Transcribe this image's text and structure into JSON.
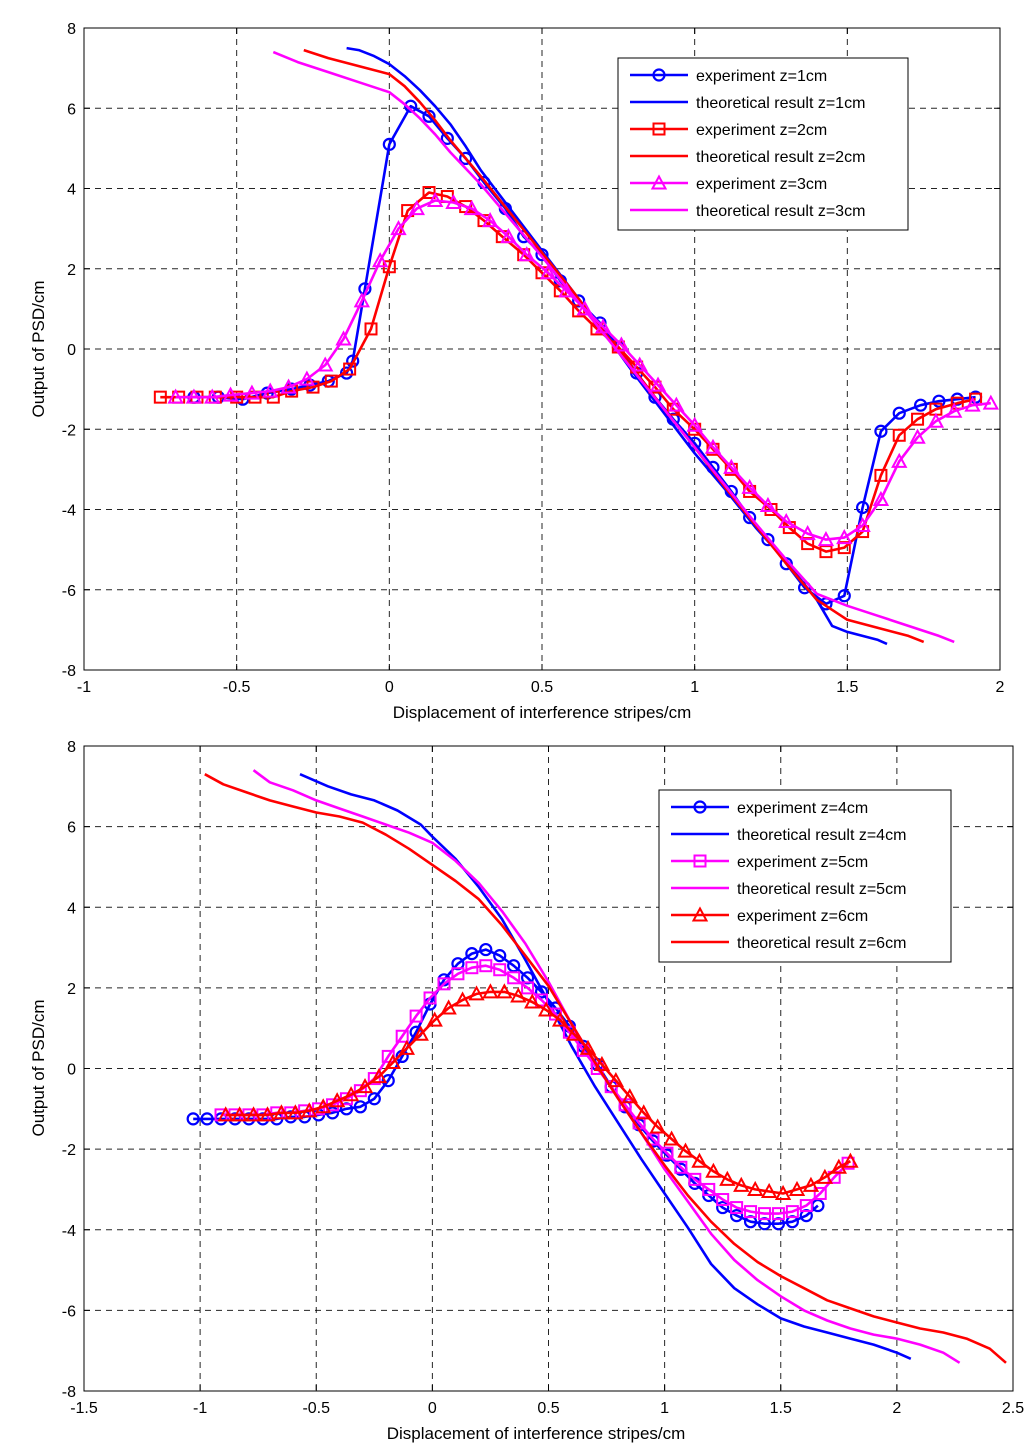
{
  "chart_data": [
    {
      "type": "line",
      "xlabel": "Displacement of interference stripes/cm",
      "ylabel": "Output of PSD/cm",
      "xlim": [
        -1,
        2
      ],
      "ylim": [
        -8,
        8
      ],
      "xticks": [
        -1,
        -0.5,
        0,
        0.5,
        1,
        1.5,
        2
      ],
      "xtick_labels": [
        "-1",
        "-0.5",
        "0",
        "0.5",
        "1",
        "1.5",
        "2"
      ],
      "yticks": [
        -8,
        -6,
        -4,
        -2,
        0,
        2,
        4,
        6,
        8
      ],
      "ytick_labels": [
        "-8",
        "-6",
        "-4",
        "-2",
        "0",
        "2",
        "4",
        "6",
        "8"
      ],
      "grid": true,
      "legend_position": "top-right",
      "series": [
        {
          "name": "experiment z=1cm",
          "color": "#0000ff",
          "marker": "circle",
          "x": [
            -0.64,
            -0.56,
            -0.48,
            -0.4,
            -0.32,
            -0.26,
            -0.2,
            -0.14,
            -0.12,
            -0.08,
            0.0,
            0.07,
            0.13,
            0.19,
            0.25,
            0.31,
            0.38,
            0.44,
            0.5,
            0.56,
            0.62,
            0.69,
            0.75,
            0.81,
            0.87,
            0.93,
            1.0,
            1.06,
            1.12,
            1.18,
            1.24,
            1.3,
            1.36,
            1.43,
            1.49,
            1.55,
            1.61,
            1.67,
            1.74,
            1.8,
            1.86,
            1.92
          ],
          "y": [
            -1.2,
            -1.2,
            -1.25,
            -1.1,
            -1.0,
            -0.9,
            -0.8,
            -0.6,
            -0.3,
            1.5,
            5.1,
            6.05,
            5.8,
            5.25,
            4.75,
            4.15,
            3.5,
            2.8,
            2.35,
            1.7,
            1.2,
            0.65,
            0.05,
            -0.6,
            -1.2,
            -1.75,
            -2.35,
            -2.95,
            -3.55,
            -4.2,
            -4.75,
            -5.35,
            -5.95,
            -6.35,
            -6.15,
            -3.95,
            -2.05,
            -1.6,
            -1.4,
            -1.3,
            -1.25,
            -1.2
          ]
        },
        {
          "name": "theoretical result z=1cm",
          "color": "#0000ff",
          "marker": "none",
          "x": [
            -0.14,
            -0.1,
            -0.05,
            0.0,
            0.05,
            0.1,
            0.15,
            0.2,
            0.25,
            0.3,
            0.4,
            0.5,
            0.6,
            0.7,
            0.8,
            0.9,
            1.0,
            1.1,
            1.2,
            1.3,
            1.4,
            1.45,
            1.5,
            1.55,
            1.6,
            1.63
          ],
          "y": [
            7.5,
            7.45,
            7.3,
            7.1,
            6.8,
            6.45,
            6.05,
            5.6,
            5.05,
            4.45,
            3.45,
            2.45,
            1.45,
            0.45,
            -0.6,
            -1.6,
            -2.6,
            -3.5,
            -4.45,
            -5.3,
            -6.25,
            -6.9,
            -7.05,
            -7.15,
            -7.25,
            -7.35
          ]
        },
        {
          "name": "experiment z=2cm",
          "color": "#ff0000",
          "marker": "square",
          "x": [
            -0.75,
            -0.69,
            -0.63,
            -0.57,
            -0.5,
            -0.44,
            -0.38,
            -0.32,
            -0.25,
            -0.19,
            -0.13,
            -0.06,
            0.0,
            0.06,
            0.13,
            0.19,
            0.25,
            0.31,
            0.37,
            0.44,
            0.5,
            0.56,
            0.62,
            0.68,
            0.75,
            0.81,
            0.87,
            0.93,
            1.0,
            1.06,
            1.12,
            1.18,
            1.25,
            1.31,
            1.37,
            1.43,
            1.49,
            1.55,
            1.61,
            1.67,
            1.73,
            1.79,
            1.86,
            1.92
          ],
          "y": [
            -1.2,
            -1.2,
            -1.2,
            -1.2,
            -1.2,
            -1.2,
            -1.2,
            -1.05,
            -0.95,
            -0.8,
            -0.5,
            0.5,
            2.05,
            3.45,
            3.9,
            3.8,
            3.55,
            3.2,
            2.8,
            2.35,
            1.9,
            1.45,
            0.95,
            0.5,
            0.05,
            -0.45,
            -0.95,
            -1.5,
            -2.0,
            -2.5,
            -3.0,
            -3.55,
            -4.0,
            -4.45,
            -4.85,
            -5.05,
            -4.95,
            -4.55,
            -3.15,
            -2.15,
            -1.75,
            -1.5,
            -1.35,
            -1.25
          ]
        },
        {
          "name": "theoretical result z=2cm",
          "color": "#ff0000",
          "marker": "none",
          "x": [
            -0.28,
            -0.2,
            -0.1,
            0.0,
            0.05,
            0.1,
            0.15,
            0.2,
            0.3,
            0.4,
            0.5,
            0.6,
            0.7,
            0.8,
            0.9,
            1.0,
            1.1,
            1.2,
            1.3,
            1.4,
            1.5,
            1.6,
            1.7,
            1.75
          ],
          "y": [
            7.45,
            7.25,
            7.05,
            6.85,
            6.55,
            6.15,
            5.7,
            5.2,
            4.3,
            3.35,
            2.4,
            1.45,
            0.45,
            -0.5,
            -1.5,
            -2.45,
            -3.45,
            -4.4,
            -5.35,
            -6.25,
            -6.75,
            -6.95,
            -7.15,
            -7.3
          ]
        },
        {
          "name": "experiment z=3cm",
          "color": "#ff00ff",
          "marker": "triangle",
          "x": [
            -0.7,
            -0.64,
            -0.58,
            -0.52,
            -0.45,
            -0.39,
            -0.33,
            -0.27,
            -0.21,
            -0.15,
            -0.09,
            -0.03,
            0.03,
            0.09,
            0.15,
            0.21,
            0.27,
            0.33,
            0.39,
            0.45,
            0.52,
            0.58,
            0.64,
            0.7,
            0.76,
            0.82,
            0.88,
            0.94,
            1.0,
            1.06,
            1.12,
            1.18,
            1.24,
            1.3,
            1.37,
            1.43,
            1.49,
            1.55,
            1.61,
            1.67,
            1.73,
            1.79,
            1.85,
            1.91,
            1.97
          ],
          "y": [
            -1.2,
            -1.2,
            -1.2,
            -1.15,
            -1.1,
            -1.05,
            -0.95,
            -0.75,
            -0.4,
            0.25,
            1.2,
            2.2,
            3.0,
            3.5,
            3.7,
            3.65,
            3.5,
            3.2,
            2.8,
            2.35,
            1.9,
            1.45,
            1.0,
            0.55,
            0.1,
            -0.4,
            -0.9,
            -1.4,
            -1.9,
            -2.45,
            -2.95,
            -3.45,
            -3.9,
            -4.3,
            -4.6,
            -4.75,
            -4.7,
            -4.4,
            -3.75,
            -2.8,
            -2.2,
            -1.8,
            -1.55,
            -1.4,
            -1.35
          ]
        },
        {
          "name": "theoretical result z=3cm",
          "color": "#ff00ff",
          "marker": "none",
          "x": [
            -0.38,
            -0.3,
            -0.2,
            -0.1,
            0.0,
            0.05,
            0.1,
            0.15,
            0.2,
            0.3,
            0.4,
            0.5,
            0.6,
            0.7,
            0.8,
            0.9,
            1.0,
            1.1,
            1.2,
            1.3,
            1.4,
            1.5,
            1.6,
            1.7,
            1.8,
            1.85
          ],
          "y": [
            7.4,
            7.15,
            6.9,
            6.65,
            6.4,
            6.1,
            5.75,
            5.35,
            4.9,
            4.1,
            3.2,
            2.3,
            1.35,
            0.4,
            -0.55,
            -1.5,
            -2.45,
            -3.4,
            -4.35,
            -5.25,
            -6.1,
            -6.4,
            -6.65,
            -6.9,
            -7.15,
            -7.3
          ]
        }
      ]
    },
    {
      "type": "line",
      "xlabel": "Displacement of interference stripes/cm",
      "ylabel": "Output of PSD/cm",
      "xlim": [
        -1.5,
        2.5
      ],
      "ylim": [
        -8,
        8
      ],
      "xticks": [
        -1.5,
        -1,
        -0.5,
        0,
        0.5,
        1,
        1.5,
        2,
        2.5
      ],
      "xtick_labels": [
        "-1.5",
        "-1",
        "-0.5",
        "0",
        "0.5",
        "1",
        "1.5",
        "2",
        "2.5"
      ],
      "yticks": [
        -8,
        -6,
        -4,
        -2,
        0,
        2,
        4,
        6,
        8
      ],
      "ytick_labels": [
        "-8",
        "-6",
        "-4",
        "-2",
        "0",
        "2",
        "4",
        "6",
        "8"
      ],
      "grid": true,
      "legend_position": "top-right",
      "series": [
        {
          "name": "experiment z=4cm",
          "color": "#0000ff",
          "marker": "circle",
          "x": [
            -1.03,
            -0.97,
            -0.91,
            -0.85,
            -0.79,
            -0.73,
            -0.67,
            -0.61,
            -0.55,
            -0.49,
            -0.43,
            -0.37,
            -0.31,
            -0.25,
            -0.19,
            -0.13,
            -0.07,
            -0.01,
            0.05,
            0.11,
            0.17,
            0.23,
            0.29,
            0.35,
            0.41,
            0.47,
            0.53,
            0.59,
            0.65,
            0.71,
            0.77,
            0.83,
            0.89,
            0.95,
            1.01,
            1.07,
            1.13,
            1.19,
            1.25,
            1.31,
            1.37,
            1.43,
            1.49,
            1.55,
            1.61,
            1.66
          ],
          "y": [
            -1.25,
            -1.25,
            -1.25,
            -1.25,
            -1.25,
            -1.25,
            -1.25,
            -1.2,
            -1.2,
            -1.15,
            -1.1,
            -1.0,
            -0.95,
            -0.75,
            -0.3,
            0.3,
            0.9,
            1.6,
            2.2,
            2.6,
            2.85,
            2.95,
            2.8,
            2.55,
            2.25,
            1.9,
            1.5,
            1.05,
            0.55,
            0.1,
            -0.45,
            -0.95,
            -1.4,
            -1.8,
            -2.15,
            -2.5,
            -2.85,
            -3.15,
            -3.45,
            -3.65,
            -3.8,
            -3.85,
            -3.85,
            -3.8,
            -3.65,
            -3.4
          ]
        },
        {
          "name": "theoretical result z=4cm",
          "color": "#0000ff",
          "marker": "none",
          "x": [
            -0.57,
            -0.45,
            -0.35,
            -0.25,
            -0.15,
            -0.05,
            0.0,
            0.1,
            0.2,
            0.3,
            0.4,
            0.5,
            0.6,
            0.7,
            0.8,
            0.9,
            1.0,
            1.1,
            1.2,
            1.3,
            1.4,
            1.5,
            1.6,
            1.7,
            1.8,
            1.9,
            2.0,
            2.06
          ],
          "y": [
            7.3,
            7.0,
            6.8,
            6.65,
            6.4,
            6.05,
            5.75,
            5.2,
            4.5,
            3.7,
            2.7,
            1.65,
            0.55,
            -0.45,
            -1.35,
            -2.25,
            -3.1,
            -3.95,
            -4.85,
            -5.45,
            -5.85,
            -6.2,
            -6.4,
            -6.55,
            -6.7,
            -6.85,
            -7.05,
            -7.2
          ]
        },
        {
          "name": "experiment z=5cm",
          "color": "#ff00ff",
          "marker": "square",
          "x": [
            -0.91,
            -0.85,
            -0.79,
            -0.73,
            -0.67,
            -0.61,
            -0.55,
            -0.49,
            -0.43,
            -0.37,
            -0.31,
            -0.25,
            -0.19,
            -0.13,
            -0.07,
            -0.01,
            0.05,
            0.11,
            0.17,
            0.23,
            0.29,
            0.35,
            0.41,
            0.47,
            0.53,
            0.59,
            0.65,
            0.71,
            0.77,
            0.83,
            0.89,
            0.95,
            1.01,
            1.07,
            1.13,
            1.19,
            1.25,
            1.31,
            1.37,
            1.43,
            1.49,
            1.55,
            1.61,
            1.67,
            1.73,
            1.79
          ],
          "y": [
            -1.15,
            -1.15,
            -1.15,
            -1.15,
            -1.1,
            -1.1,
            -1.05,
            -1.0,
            -0.9,
            -0.75,
            -0.55,
            -0.25,
            0.3,
            0.8,
            1.3,
            1.75,
            2.1,
            2.35,
            2.5,
            2.55,
            2.45,
            2.25,
            2.0,
            1.7,
            1.35,
            0.9,
            0.45,
            0.0,
            -0.45,
            -0.9,
            -1.35,
            -1.75,
            -2.1,
            -2.45,
            -2.75,
            -3.0,
            -3.25,
            -3.45,
            -3.55,
            -3.6,
            -3.6,
            -3.55,
            -3.4,
            -3.1,
            -2.7,
            -2.35
          ]
        },
        {
          "name": "theoretical result z=5cm",
          "color": "#ff00ff",
          "marker": "none",
          "x": [
            -0.77,
            -0.7,
            -0.6,
            -0.5,
            -0.4,
            -0.3,
            -0.2,
            -0.1,
            0.0,
            0.1,
            0.2,
            0.3,
            0.4,
            0.5,
            0.6,
            0.7,
            0.8,
            0.9,
            1.0,
            1.1,
            1.2,
            1.3,
            1.4,
            1.5,
            1.6,
            1.7,
            1.8,
            1.9,
            2.0,
            2.1,
            2.2,
            2.27
          ],
          "y": [
            7.4,
            7.1,
            6.9,
            6.65,
            6.45,
            6.25,
            6.05,
            5.85,
            5.6,
            5.15,
            4.6,
            3.9,
            3.1,
            2.15,
            1.1,
            0.15,
            -0.75,
            -1.6,
            -2.5,
            -3.3,
            -4.1,
            -4.75,
            -5.25,
            -5.65,
            -6.0,
            -6.25,
            -6.45,
            -6.6,
            -6.7,
            -6.85,
            -7.05,
            -7.3
          ]
        },
        {
          "name": "experiment z=6cm",
          "color": "#ff0000",
          "marker": "triangle",
          "x": [
            -0.89,
            -0.83,
            -0.77,
            -0.71,
            -0.65,
            -0.59,
            -0.53,
            -0.47,
            -0.41,
            -0.35,
            -0.29,
            -0.23,
            -0.17,
            -0.11,
            -0.05,
            0.01,
            0.07,
            0.13,
            0.19,
            0.25,
            0.31,
            0.37,
            0.43,
            0.49,
            0.55,
            0.61,
            0.67,
            0.73,
            0.79,
            0.85,
            0.91,
            0.97,
            1.03,
            1.09,
            1.15,
            1.21,
            1.27,
            1.33,
            1.39,
            1.45,
            1.51,
            1.57,
            1.63,
            1.69,
            1.75,
            1.8
          ],
          "y": [
            -1.15,
            -1.15,
            -1.15,
            -1.15,
            -1.1,
            -1.1,
            -1.05,
            -0.95,
            -0.8,
            -0.65,
            -0.45,
            -0.2,
            0.15,
            0.5,
            0.85,
            1.2,
            1.5,
            1.7,
            1.85,
            1.9,
            1.9,
            1.8,
            1.65,
            1.45,
            1.2,
            0.85,
            0.5,
            0.1,
            -0.3,
            -0.7,
            -1.1,
            -1.45,
            -1.75,
            -2.05,
            -2.3,
            -2.55,
            -2.75,
            -2.9,
            -3.0,
            -3.05,
            -3.1,
            -3.0,
            -2.9,
            -2.7,
            -2.45,
            -2.3
          ]
        },
        {
          "name": "theoretical result z=6cm",
          "color": "#ff0000",
          "marker": "none",
          "x": [
            -0.98,
            -0.9,
            -0.8,
            -0.7,
            -0.6,
            -0.5,
            -0.4,
            -0.3,
            -0.2,
            -0.1,
            0.0,
            0.1,
            0.2,
            0.3,
            0.4,
            0.5,
            0.6,
            0.7,
            0.8,
            0.9,
            1.0,
            1.1,
            1.2,
            1.3,
            1.4,
            1.5,
            1.6,
            1.7,
            1.8,
            1.9,
            2.0,
            2.1,
            2.2,
            2.3,
            2.4,
            2.47
          ],
          "y": [
            7.3,
            7.05,
            6.85,
            6.65,
            6.5,
            6.35,
            6.25,
            6.1,
            5.8,
            5.45,
            5.05,
            4.65,
            4.2,
            3.55,
            2.8,
            2.05,
            1.1,
            0.15,
            -0.75,
            -1.6,
            -2.4,
            -3.15,
            -3.8,
            -4.35,
            -4.8,
            -5.15,
            -5.45,
            -5.75,
            -5.95,
            -6.15,
            -6.3,
            -6.45,
            -6.55,
            -6.7,
            -6.95,
            -7.3
          ]
        }
      ]
    }
  ]
}
